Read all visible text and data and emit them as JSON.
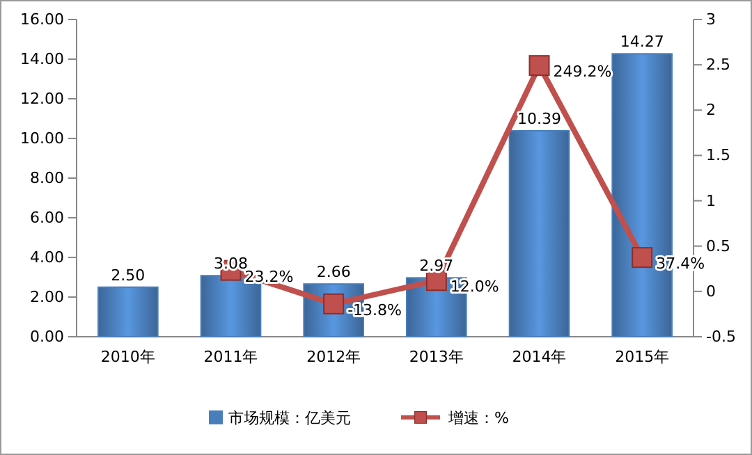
{
  "chart_data": {
    "type": "bar",
    "categories": [
      "2010年",
      "2011年",
      "2012年",
      "2013年",
      "2014年",
      "2015年"
    ],
    "series": [
      {
        "name": "市场规模：亿美元",
        "color": "#4a7ebb",
        "values": [
          2.5,
          3.08,
          2.66,
          2.97,
          10.39,
          14.27
        ],
        "value_labels": [
          "2.50",
          "3.08",
          "2.66",
          "2.97",
          "10.39",
          "14.27"
        ]
      },
      {
        "name": "增速：%",
        "type": "line",
        "axis": "y2",
        "color": "#c0504d",
        "values": [
          null,
          0.232,
          -0.138,
          0.12,
          2.492,
          0.374
        ],
        "value_labels": [
          null,
          "23.2%",
          "-13.8%",
          "12.0%",
          "249.2%",
          "37.4%"
        ]
      }
    ],
    "ylim": [
      0,
      16
    ],
    "yticks": [
      {
        "value": 0,
        "label": "0.00"
      },
      {
        "value": 2,
        "label": "2.00"
      },
      {
        "value": 4,
        "label": "4.00"
      },
      {
        "value": 6,
        "label": "6.00"
      },
      {
        "value": 8,
        "label": "8.00"
      },
      {
        "value": 10,
        "label": "10.00"
      },
      {
        "value": 12,
        "label": "12.00"
      },
      {
        "value": 14,
        "label": "14.00"
      },
      {
        "value": 16,
        "label": "16.00"
      }
    ],
    "y2lim": [
      -0.5,
      3
    ],
    "y2ticks": [
      -0.5,
      0,
      0.5,
      1,
      1.5,
      2,
      2.5,
      3
    ],
    "legend": "bottom",
    "marker": "square"
  }
}
